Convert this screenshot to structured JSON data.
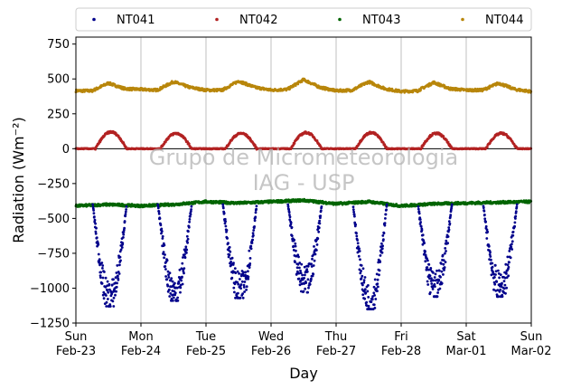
{
  "chart_data": {
    "type": "scatter",
    "title": "",
    "xlabel": "Day",
    "ylabel": "Radiation (Wm⁻²)",
    "ylim": [
      -1250,
      800
    ],
    "yticks": [
      -1250,
      -1000,
      -750,
      -500,
      -250,
      0,
      250,
      500,
      750
    ],
    "xlim": [
      "2025-02-23",
      "2025-03-02"
    ],
    "xticks": [
      {
        "day": "Sun",
        "date": "Feb-23"
      },
      {
        "day": "Mon",
        "date": "Feb-24"
      },
      {
        "day": "Tue",
        "date": "Feb-25"
      },
      {
        "day": "Wed",
        "date": "Feb-26"
      },
      {
        "day": "Thu",
        "date": "Feb-27"
      },
      {
        "day": "Fri",
        "date": "Feb-28"
      },
      {
        "day": "Sat",
        "date": "Mar-01"
      },
      {
        "day": "Sun",
        "date": "Mar-02"
      }
    ],
    "grid": "vertical",
    "legend_position": "top",
    "watermark": [
      "Grupo de Micrometeorologia",
      "IAG - USP"
    ],
    "series": [
      {
        "name": "NT041",
        "color": "#00008b",
        "description_of_shape": "night ~ -400, daytime minimum each day",
        "x_days_since_start_minima": [
          0.55,
          1.55,
          2.55,
          3.55,
          4.55,
          5.55,
          6.55
        ],
        "daily_min": [
          -1130,
          -1090,
          -1070,
          -1030,
          -1150,
          -1060,
          -1060
        ],
        "night_value": -400
      },
      {
        "name": "NT042",
        "color": "#b22222",
        "daily_max": [
          120,
          110,
          110,
          115,
          115,
          110,
          110
        ],
        "night_value": 0
      },
      {
        "name": "NT043",
        "color": "#006400",
        "x_days": [
          0,
          0.5,
          1,
          1.5,
          2,
          2.5,
          3,
          3.5,
          4,
          4.5,
          5,
          5.5,
          6,
          6.5,
          7
        ],
        "y": [
          -410,
          -400,
          -410,
          -400,
          -380,
          -390,
          -380,
          -370,
          -395,
          -380,
          -410,
          -395,
          -390,
          -385,
          -380
        ]
      },
      {
        "name": "NT044",
        "color": "#b8860b",
        "x_days": [
          0,
          0.25,
          0.5,
          0.75,
          1,
          1.25,
          1.5,
          1.75,
          2,
          2.25,
          2.5,
          2.75,
          3,
          3.25,
          3.5,
          3.75,
          4,
          4.25,
          4.5,
          4.75,
          5,
          5.25,
          5.5,
          5.75,
          6,
          6.25,
          6.5,
          6.75,
          7
        ],
        "y": [
          415,
          415,
          470,
          430,
          425,
          420,
          480,
          440,
          420,
          420,
          485,
          440,
          420,
          425,
          495,
          440,
          415,
          420,
          480,
          430,
          410,
          415,
          475,
          430,
          420,
          420,
          470,
          425,
          410
        ]
      }
    ]
  },
  "axis": {
    "zero_line": 0
  }
}
